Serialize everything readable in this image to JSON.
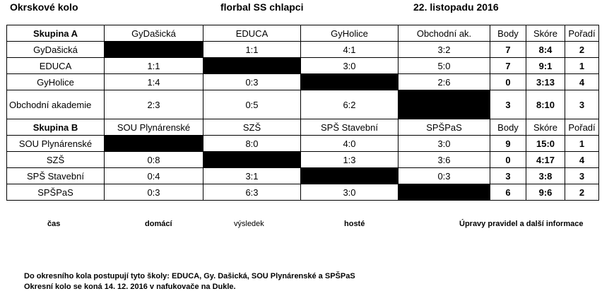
{
  "header": {
    "left": "Okrskové kolo",
    "middle": "florbal SS chlapci",
    "right": "22. listopadu  2016"
  },
  "groupA": {
    "title": "Skupina A",
    "columns": [
      "GyDašická",
      "EDUCA",
      "GyHolice",
      "Obchodní ak.",
      "Body",
      "Skóre",
      "Pořadí"
    ],
    "rows": [
      {
        "team": "GyDašická",
        "r": [
          "",
          "1:1",
          "4:1",
          "3:2"
        ],
        "body": "7",
        "skore": "8:4",
        "poradi": "2"
      },
      {
        "team": "EDUCA",
        "r": [
          "1:1",
          "",
          "3:0",
          "5:0"
        ],
        "body": "7",
        "skore": "9:1",
        "poradi": "1"
      },
      {
        "team": "GyHolice",
        "r": [
          "1:4",
          "0:3",
          "",
          "2:6"
        ],
        "body": "0",
        "skore": "3:13",
        "poradi": "4"
      },
      {
        "team": "Obchodní akademie",
        "r": [
          "2:3",
          "0:5",
          "6:2",
          ""
        ],
        "body": "3",
        "skore": "8:10",
        "poradi": "3"
      }
    ]
  },
  "groupB": {
    "title": "Skupina B",
    "columns": [
      "SOU Plynárenské",
      "SZŠ",
      "SPŠ Stavební",
      "SPŠPaS",
      "Body",
      "Skóre",
      "Pořadí"
    ],
    "rows": [
      {
        "team": "SOU Plynárenské",
        "r": [
          "",
          "8:0",
          "4:0",
          "3:0"
        ],
        "body": "9",
        "skore": "15:0",
        "poradi": "1"
      },
      {
        "team": "SZŠ",
        "r": [
          "0:8",
          "",
          "1:3",
          "3:6"
        ],
        "body": "0",
        "skore": "4:17",
        "poradi": "4"
      },
      {
        "team": "SPŠ Stavební",
        "r": [
          "0:4",
          "3:1",
          "",
          "0:3"
        ],
        "body": "3",
        "skore": "3:8",
        "poradi": "3"
      },
      {
        "team": "SPŠPaS",
        "r": [
          "0:3",
          "6:3",
          "3:0",
          ""
        ],
        "body": "6",
        "skore": "9:6",
        "poradi": "2"
      }
    ]
  },
  "legend": {
    "cas": "čas",
    "domaci": "domácí",
    "vysledek": "výsledek",
    "hoste": "hosté",
    "info": "Úpravy pravidel a další informace"
  },
  "notes": {
    "line1": "Do okresního kola postupují tyto školy:   EDUCA, Gy. Dašická, SOU Plynárenské a SPŠPaS",
    "line2": "Okresní kolo se koná 14. 12. 2016 v nafukovače na Dukle."
  }
}
